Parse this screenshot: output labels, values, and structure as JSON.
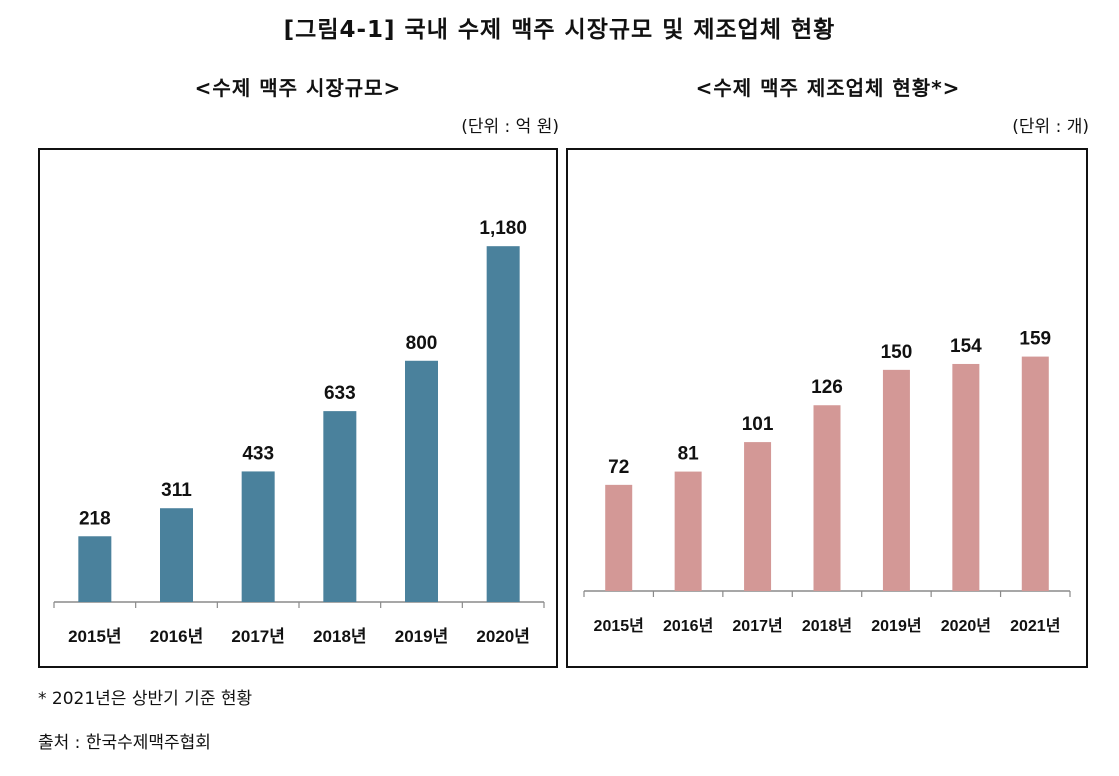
{
  "figure": {
    "title": "[그림4-1] 국내 수제 맥주 시장규모 및 제조업체 현황",
    "note": "* 2021년은 상반기 기준 현황",
    "source": "출처 : 한국수제맥주협회"
  },
  "chart_data": [
    {
      "type": "bar",
      "title": "<수제 맥주 시장규모>",
      "unit_label": "(단위 : 억 원)",
      "categories": [
        "2015년",
        "2016년",
        "2017년",
        "2018년",
        "2019년",
        "2020년"
      ],
      "values": [
        218,
        311,
        433,
        633,
        800,
        1180
      ],
      "value_labels": [
        "218",
        "311",
        "433",
        "633",
        "800",
        "1,180"
      ],
      "ylim": [
        0,
        1300
      ],
      "color": "#4a819c",
      "xlabel": "",
      "ylabel": "",
      "grid": false,
      "legend": "none"
    },
    {
      "type": "bar",
      "title": "<수제 맥주 제조업체 현황*>",
      "unit_label": "(단위 : 개)",
      "categories": [
        "2015년",
        "2016년",
        "2017년",
        "2018년",
        "2019년",
        "2020년",
        "2021년"
      ],
      "values": [
        72,
        81,
        101,
        126,
        150,
        154,
        159
      ],
      "value_labels": [
        "72",
        "81",
        "101",
        "126",
        "150",
        "154",
        "159"
      ],
      "ylim": [
        0,
        175
      ],
      "color": "#d39896",
      "xlabel": "",
      "ylabel": "",
      "grid": false,
      "legend": "none"
    }
  ]
}
